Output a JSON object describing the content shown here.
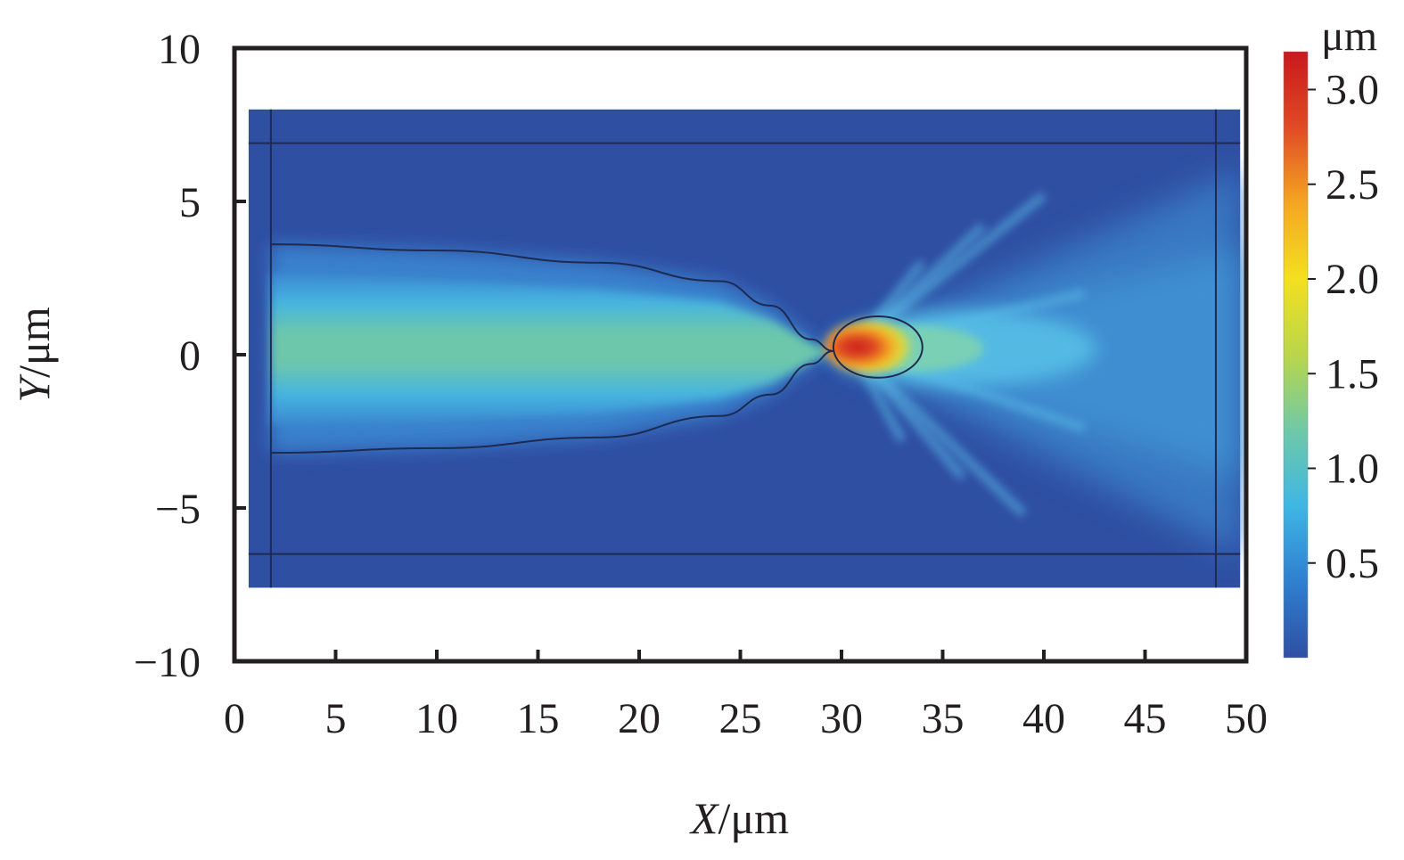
{
  "chart_data": {
    "type": "heatmap",
    "title": "",
    "xlabel": {
      "var": "X",
      "unit": "/μm"
    },
    "ylabel": {
      "var": "Y",
      "unit": "/μm"
    },
    "xlim": [
      0,
      50
    ],
    "ylim": [
      -10,
      10
    ],
    "x_ticks": [
      {
        "value": 0,
        "label": "0"
      },
      {
        "value": 5,
        "label": "5"
      },
      {
        "value": 10,
        "label": "10"
      },
      {
        "value": 15,
        "label": "15"
      },
      {
        "value": 20,
        "label": "20"
      },
      {
        "value": 25,
        "label": "25"
      },
      {
        "value": 30,
        "label": "30"
      },
      {
        "value": 35,
        "label": "35"
      },
      {
        "value": 40,
        "label": "40"
      },
      {
        "value": 45,
        "label": "45"
      },
      {
        "value": 50,
        "label": "50"
      }
    ],
    "y_ticks": [
      {
        "value": 10,
        "label": "10"
      },
      {
        "value": 5,
        "label": "5"
      },
      {
        "value": 0,
        "label": "0"
      },
      {
        "value": -5,
        "label": "−5"
      },
      {
        "value": -10,
        "label": "−10"
      }
    ],
    "domain_extent": {
      "x": [
        0.7,
        49.7
      ],
      "y": [
        -7.6,
        8.0
      ]
    },
    "boundary_lines": {
      "horizontal_y": [
        6.9,
        -6.5
      ],
      "vertical_x": [
        1.8,
        48.5
      ]
    },
    "fiber_profile": {
      "upper": [
        [
          1.8,
          3.6
        ],
        [
          10,
          3.4
        ],
        [
          18,
          3.0
        ],
        [
          24,
          2.4
        ],
        [
          26.5,
          1.6
        ],
        [
          28.5,
          0.5
        ],
        [
          29.6,
          0.12
        ]
      ],
      "lower": [
        [
          1.8,
          -3.2
        ],
        [
          10,
          -3.05
        ],
        [
          18,
          -2.7
        ],
        [
          24,
          -2.0
        ],
        [
          26.5,
          -1.3
        ],
        [
          28.5,
          -0.3
        ],
        [
          29.6,
          0.12
        ]
      ]
    },
    "focus_ellipse": {
      "cx": 31.8,
      "cy": 0.25,
      "rx": 2.2,
      "ry": 1.0
    },
    "colorbar": {
      "unit": "μm",
      "range": [
        0,
        3.2
      ],
      "ticks": [
        {
          "value": 3.0,
          "label": "3.0"
        },
        {
          "value": 2.5,
          "label": "2.5"
        },
        {
          "value": 2.0,
          "label": "2.0"
        },
        {
          "value": 1.5,
          "label": "1.5"
        },
        {
          "value": 1.0,
          "label": "1.0"
        },
        {
          "value": 0.5,
          "label": "0.5"
        }
      ],
      "colors": [
        "#2f4fa3",
        "#2f7fd0",
        "#3fb6e4",
        "#6fc9a8",
        "#b9d64a",
        "#f4e020",
        "#f5a623",
        "#e04a24",
        "#c8191c"
      ]
    }
  }
}
